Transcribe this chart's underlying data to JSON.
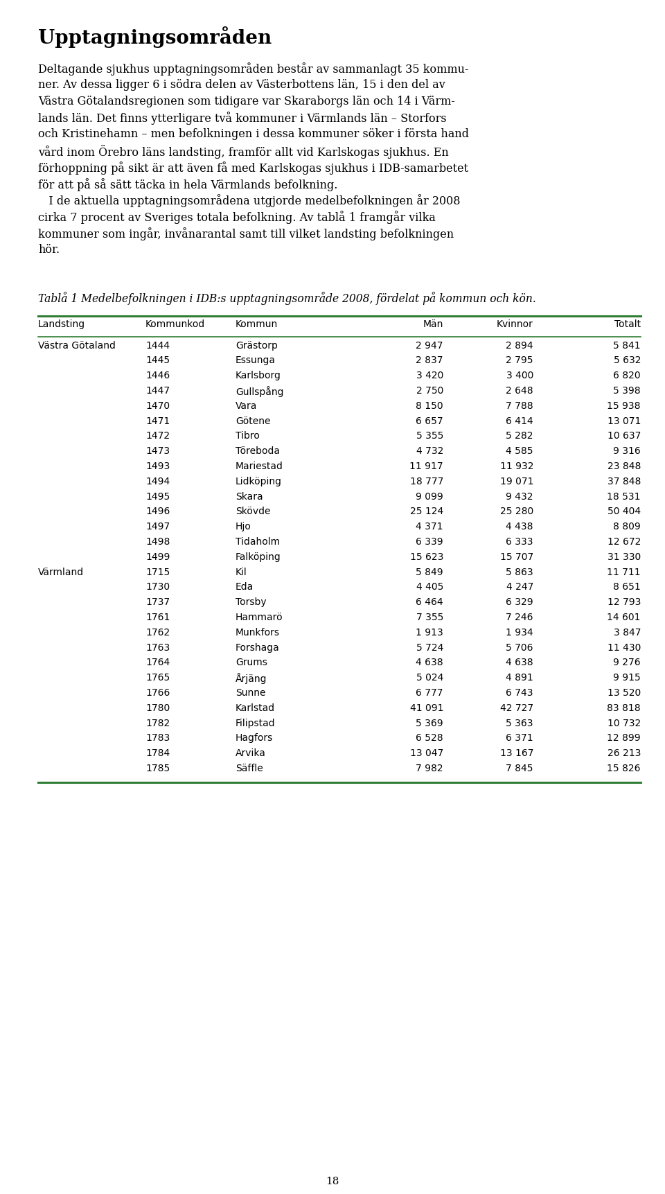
{
  "title": "Upptagningsområden",
  "body_text": [
    "Deltagande sjukhus upptagningsområden består av sammanlagt 35 kommu-",
    "ner. Av dessa ligger 6 i södra delen av Västerbottens län, 15 i den del av",
    "Västra Götalandsregionen som tidigare var Skaraborgs län och 14 i Värm-",
    "lands län. Det finns ytterligare två kommuner i Värmlands län – Storfors",
    "och Kristinehamn – men befolkningen i dessa kommuner söker i första hand",
    "vård inom Örebro läns landsting, framför allt vid Karlskogas sjukhus. En",
    "förhoppning på sikt är att även få med Karlskogas sjukhus i IDB-samarbetet",
    "för att på så sätt täcka in hela Värmlands befolkning.",
    "   I de aktuella upptagningsområdena utgjorde medelbefolkningen år 2008",
    "cirka 7 procent av Sveriges totala befolkning. Av tablå 1 framgår vilka",
    "kommuner som ingår, invånarantal samt till vilket landsting befolkningen",
    "hör."
  ],
  "table_caption": "Tablå 1 Medelbefolkningen i IDB:s upptagningsområde 2008, fördelat på kommun och kön.",
  "col_headers": [
    "Landsting",
    "Kommunkod",
    "Kommun",
    "Män",
    "Kvinnor",
    "Totalt"
  ],
  "rows": [
    [
      "Västra Götaland",
      "1444",
      "Grästorp",
      "2 947",
      "2 894",
      "5 841"
    ],
    [
      "",
      "1445",
      "Essunga",
      "2 837",
      "2 795",
      "5 632"
    ],
    [
      "",
      "1446",
      "Karlsborg",
      "3 420",
      "3 400",
      "6 820"
    ],
    [
      "",
      "1447",
      "Gullspång",
      "2 750",
      "2 648",
      "5 398"
    ],
    [
      "",
      "1470",
      "Vara",
      "8 150",
      "7 788",
      "15 938"
    ],
    [
      "",
      "1471",
      "Götene",
      "6 657",
      "6 414",
      "13 071"
    ],
    [
      "",
      "1472",
      "Tibro",
      "5 355",
      "5 282",
      "10 637"
    ],
    [
      "",
      "1473",
      "Töreboda",
      "4 732",
      "4 585",
      "9 316"
    ],
    [
      "",
      "1493",
      "Mariestad",
      "11 917",
      "11 932",
      "23 848"
    ],
    [
      "",
      "1494",
      "Lidköping",
      "18 777",
      "19 071",
      "37 848"
    ],
    [
      "",
      "1495",
      "Skara",
      "9 099",
      "9 432",
      "18 531"
    ],
    [
      "",
      "1496",
      "Skövde",
      "25 124",
      "25 280",
      "50 404"
    ],
    [
      "",
      "1497",
      "Hjo",
      "4 371",
      "4 438",
      "8 809"
    ],
    [
      "",
      "1498",
      "Tidaholm",
      "6 339",
      "6 333",
      "12 672"
    ],
    [
      "",
      "1499",
      "Falköping",
      "15 623",
      "15 707",
      "31 330"
    ],
    [
      "Värmland",
      "1715",
      "Kil",
      "5 849",
      "5 863",
      "11 711"
    ],
    [
      "",
      "1730",
      "Eda",
      "4 405",
      "4 247",
      "8 651"
    ],
    [
      "",
      "1737",
      "Torsby",
      "6 464",
      "6 329",
      "12 793"
    ],
    [
      "",
      "1761",
      "Hammarö",
      "7 355",
      "7 246",
      "14 601"
    ],
    [
      "",
      "1762",
      "Munkfors",
      "1 913",
      "1 934",
      "3 847"
    ],
    [
      "",
      "1763",
      "Forshaga",
      "5 724",
      "5 706",
      "11 430"
    ],
    [
      "",
      "1764",
      "Grums",
      "4 638",
      "4 638",
      "9 276"
    ],
    [
      "",
      "1765",
      "Årjäng",
      "5 024",
      "4 891",
      "9 915"
    ],
    [
      "",
      "1766",
      "Sunne",
      "6 777",
      "6 743",
      "13 520"
    ],
    [
      "",
      "1780",
      "Karlstad",
      "41 091",
      "42 727",
      "83 818"
    ],
    [
      "",
      "1782",
      "Filipstad",
      "5 369",
      "5 363",
      "10 732"
    ],
    [
      "",
      "1783",
      "Hagfors",
      "6 528",
      "6 371",
      "12 899"
    ],
    [
      "",
      "1784",
      "Arvika",
      "13 047",
      "13 167",
      "26 213"
    ],
    [
      "",
      "1785",
      "Säffle",
      "7 982",
      "7 845",
      "15 826"
    ]
  ],
  "page_number": "18",
  "background_color": "#ffffff",
  "text_color": "#000000",
  "line_color": "#2e7d32",
  "fig_width": 9.6,
  "fig_height": 17.23,
  "dpi": 100
}
